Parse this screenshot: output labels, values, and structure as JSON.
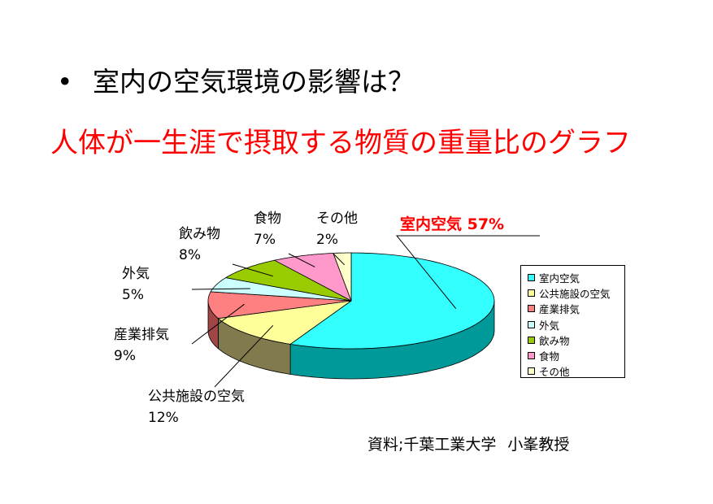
{
  "slide": {
    "bullet": "•",
    "heading": "室内の空気環境の影響は？",
    "subtitle": "人体が一生涯で摂取する物質の重量比のグラフ",
    "source_label": "資料;千葉工業大学",
    "source_person": "小峯教授"
  },
  "chart_data": {
    "type": "pie",
    "title": "人体が一生涯で摂取する物質の重量比のグラフ",
    "legend_position": "right",
    "categories": [
      "室内空気",
      "公共施設の空気",
      "産業排気",
      "外気",
      "飲み物",
      "食物",
      "その他"
    ],
    "values": [
      57,
      12,
      9,
      5,
      8,
      7,
      2
    ],
    "unit": "%",
    "colors": [
      "#33ffff",
      "#ffff99",
      "#ff8080",
      "#ccffff",
      "#99cc00",
      "#ff99cc",
      "#ffffcc"
    ],
    "side_colors": [
      "#009999",
      "#807a4d",
      "#a04646",
      "#7fa0a0",
      "#5c7a00",
      "#a05e80",
      "#a0a07a"
    ],
    "highlight": {
      "category": "室内空気",
      "color": "#ff0000"
    },
    "data_labels": [
      {
        "name": "室内空気",
        "value": "57%"
      },
      {
        "name": "公共施設の空気",
        "value": "12%"
      },
      {
        "name": "産業排気",
        "value": "9%"
      },
      {
        "name": "外気",
        "value": "5%"
      },
      {
        "name": "飲み物",
        "value": "8%"
      },
      {
        "name": "食物",
        "value": "7%"
      },
      {
        "name": "その他",
        "value": "2%"
      }
    ]
  }
}
